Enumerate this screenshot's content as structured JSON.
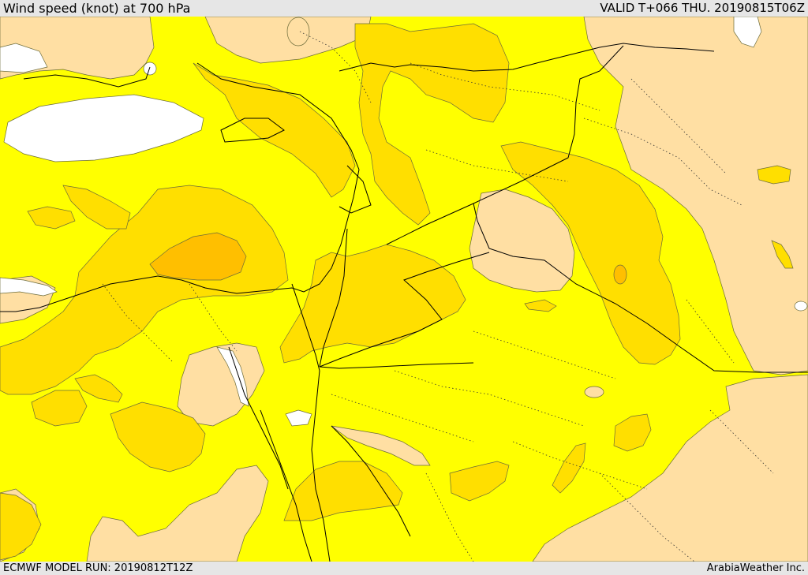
{
  "header": {
    "title": "Wind speed (knot) at 700 hPa",
    "valid": "VALID T+066 THU. 20190815T06Z"
  },
  "footer": {
    "model_run": "ECMWF MODEL RUN: 20190812T12Z",
    "credit": "ArabiaWeather Inc."
  },
  "colors": {
    "lowest_band": "#ffffff",
    "low_band": "#ffdfa3",
    "base_band": "#ffff00",
    "mid_band": "#ffdf00",
    "high_band": "#ffbf00",
    "border_line": "#000000",
    "background_bar": "#e6e6e6"
  }
}
